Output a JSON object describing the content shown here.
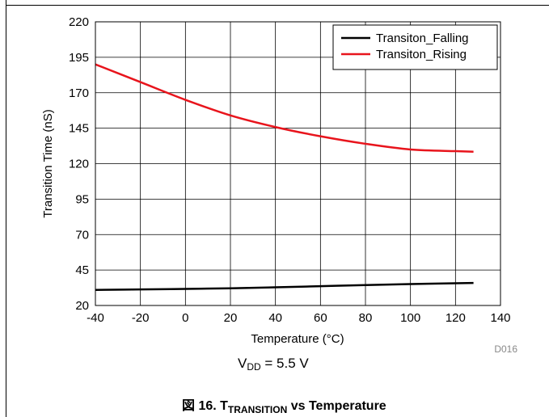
{
  "chart_data": {
    "type": "line",
    "xlabel": "Temperature (°C)",
    "ylabel": "Transition Time (nS)",
    "xlim": [
      -40,
      140
    ],
    "ylim": [
      20,
      220
    ],
    "x_ticks": [
      -40,
      -20,
      0,
      20,
      40,
      60,
      80,
      100,
      120,
      140
    ],
    "y_ticks": [
      20,
      45,
      70,
      95,
      120,
      145,
      170,
      195,
      220
    ],
    "grid": true,
    "legend_position": "top-right",
    "series": [
      {
        "name": "Transiton_Falling",
        "color": "#000000",
        "x": [
          -40,
          -20,
          0,
          20,
          40,
          60,
          80,
          100,
          120,
          128
        ],
        "y": [
          31,
          31.3,
          31.7,
          32.1,
          32.8,
          33.6,
          34.4,
          35.1,
          35.7,
          35.9
        ]
      },
      {
        "name": "Transiton_Rising",
        "color": "#e8141c",
        "x": [
          -40,
          -20,
          0,
          20,
          40,
          60,
          80,
          100,
          120,
          128
        ],
        "y": [
          190,
          177.5,
          165,
          154,
          145.8,
          139.3,
          134,
          130,
          128.8,
          128.4
        ]
      }
    ]
  },
  "figure_code": "D016",
  "condition": {
    "v": "V",
    "sub": "DD",
    "rest": " = 5.5 V"
  },
  "caption": {
    "prefix": "図 16. T",
    "sub": "TRANSITION",
    "suffix": " vs Temperature"
  }
}
